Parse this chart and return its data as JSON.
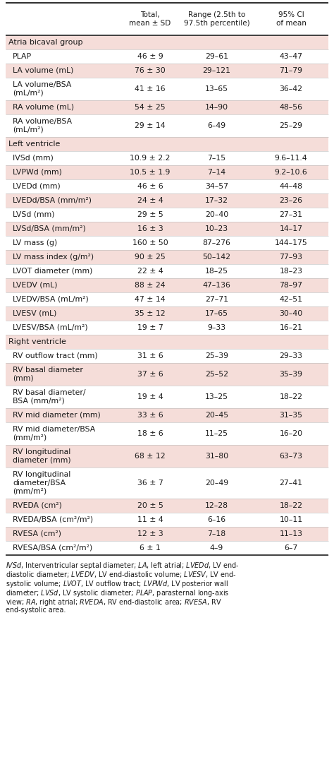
{
  "bg_color": "#fdf0ee",
  "white_color": "#ffffff",
  "shade_color": "#f5ddd9",
  "text_color": "#1a1a1a",
  "rows": [
    {
      "type": "header"
    },
    {
      "type": "section",
      "label": "Atria bicaval group"
    },
    {
      "type": "data",
      "label": "PLAP",
      "c1": "46 ± 9",
      "c2": "29–61",
      "c3": "43–47",
      "shade": false,
      "nlines": 1
    },
    {
      "type": "data",
      "label": "LA volume (mL)",
      "c1": "76 ± 30",
      "c2": "29–121",
      "c3": "71–79",
      "shade": true,
      "nlines": 1
    },
    {
      "type": "data",
      "label": "LA volume/BSA\n(mL/m²)",
      "c1": "41 ± 16",
      "c2": "13–65",
      "c3": "36–42",
      "shade": false,
      "nlines": 2
    },
    {
      "type": "data",
      "label": "RA volume (mL)",
      "c1": "54 ± 25",
      "c2": "14–90",
      "c3": "48–56",
      "shade": true,
      "nlines": 1
    },
    {
      "type": "data",
      "label": "RA volume/BSA\n(mL/m²)",
      "c1": "29 ± 14",
      "c2": "6–49",
      "c3": "25–29",
      "shade": false,
      "nlines": 2
    },
    {
      "type": "section",
      "label": "Left ventricle"
    },
    {
      "type": "data",
      "label": "IVSd (mm)",
      "c1": "10.9 ± 2.2",
      "c2": "7–15",
      "c3": "9.6–11.4",
      "shade": false,
      "nlines": 1
    },
    {
      "type": "data",
      "label": "LVPWd (mm)",
      "c1": "10.5 ± 1.9",
      "c2": "7–14",
      "c3": "9.2–10.6",
      "shade": true,
      "nlines": 1
    },
    {
      "type": "data",
      "label": "LVEDd (mm)",
      "c1": "46 ± 6",
      "c2": "34–57",
      "c3": "44–48",
      "shade": false,
      "nlines": 1
    },
    {
      "type": "data",
      "label": "LVEDd/BSA (mm/m²)",
      "c1": "24 ± 4",
      "c2": "17–32",
      "c3": "23–26",
      "shade": true,
      "nlines": 1
    },
    {
      "type": "data",
      "label": "LVSd (mm)",
      "c1": "29 ± 5",
      "c2": "20–40",
      "c3": "27–31",
      "shade": false,
      "nlines": 1
    },
    {
      "type": "data",
      "label": "LVSd/BSA (mm/m²)",
      "c1": "16 ± 3",
      "c2": "10–23",
      "c3": "14–17",
      "shade": true,
      "nlines": 1
    },
    {
      "type": "data",
      "label": "LV mass (g)",
      "c1": "160 ± 50",
      "c2": "87–276",
      "c3": "144–175",
      "shade": false,
      "nlines": 1
    },
    {
      "type": "data",
      "label": "LV mass index (g/m²)",
      "c1": "90 ± 25",
      "c2": "50–142",
      "c3": "77–93",
      "shade": true,
      "nlines": 1
    },
    {
      "type": "data",
      "label": "LVOT diameter (mm)",
      "c1": "22 ± 4",
      "c2": "18–25",
      "c3": "18–23",
      "shade": false,
      "nlines": 1
    },
    {
      "type": "data",
      "label": "LVEDV (mL)",
      "c1": "88 ± 24",
      "c2": "47–136",
      "c3": "78–97",
      "shade": true,
      "nlines": 1
    },
    {
      "type": "data",
      "label": "LVEDV/BSA (mL/m²)",
      "c1": "47 ± 14",
      "c2": "27–71",
      "c3": "42–51",
      "shade": false,
      "nlines": 1
    },
    {
      "type": "data",
      "label": "LVESV (mL)",
      "c1": "35 ± 12",
      "c2": "17–65",
      "c3": "30–40",
      "shade": true,
      "nlines": 1
    },
    {
      "type": "data",
      "label": "LVESV/BSA (mL/m²)",
      "c1": "19 ± 7",
      "c2": "9–33",
      "c3": "16–21",
      "shade": false,
      "nlines": 1
    },
    {
      "type": "section",
      "label": "Right ventricle"
    },
    {
      "type": "data",
      "label": "RV outflow tract (mm)",
      "c1": "31 ± 6",
      "c2": "25–39",
      "c3": "29–33",
      "shade": false,
      "nlines": 1
    },
    {
      "type": "data",
      "label": "RV basal diameter\n(mm)",
      "c1": "37 ± 6",
      "c2": "25–52",
      "c3": "35–39",
      "shade": true,
      "nlines": 2
    },
    {
      "type": "data",
      "label": "RV basal diameter/\nBSA (mm/m²)",
      "c1": "19 ± 4",
      "c2": "13–25",
      "c3": "18–22",
      "shade": false,
      "nlines": 2
    },
    {
      "type": "data",
      "label": "RV mid diameter (mm)",
      "c1": "33 ± 6",
      "c2": "20–45",
      "c3": "31–35",
      "shade": true,
      "nlines": 1
    },
    {
      "type": "data",
      "label": "RV mid diameter/BSA\n(mm/m²)",
      "c1": "18 ± 6",
      "c2": "11–25",
      "c3": "16–20",
      "shade": false,
      "nlines": 2
    },
    {
      "type": "data",
      "label": "RV longitudinal\ndiameter (mm)",
      "c1": "68 ± 12",
      "c2": "31–80",
      "c3": "63–73",
      "shade": true,
      "nlines": 2
    },
    {
      "type": "data",
      "label": "RV longitudinal\ndiameter/BSA\n(mm/m²)",
      "c1": "36 ± 7",
      "c2": "20–49",
      "c3": "27–41",
      "shade": false,
      "nlines": 3
    },
    {
      "type": "data",
      "label": "RVEDA (cm²)",
      "c1": "20 ± 5",
      "c2": "12–28",
      "c3": "18–22",
      "shade": true,
      "nlines": 1
    },
    {
      "type": "data",
      "label": "RVEDA/BSA (cm²/m²)",
      "c1": "11 ± 4",
      "c2": "6–16",
      "c3": "10–11",
      "shade": false,
      "nlines": 1
    },
    {
      "type": "data",
      "label": "RVESA (cm²)",
      "c1": "12 ± 3",
      "c2": "7–18",
      "c3": "11–13",
      "shade": true,
      "nlines": 1
    },
    {
      "type": "data",
      "label": "RVESA/BSA (cm²/m²)",
      "c1": "6 ± 1",
      "c2": "4–9",
      "c3": "6–7",
      "shade": false,
      "nlines": 1
    }
  ],
  "footnote_lines": [
    "$\\it{IVSd}$, Interventricular septal diameter; $\\it{LA}$, left atrial; $\\it{LVEDd}$, LV end-",
    "diastolic diameter; $\\it{LVEDV}$, LV end-diastolic volume; $\\it{LVESV}$, LV end-",
    "systolic volume; $\\it{LVOT}$, LV outflow tract; $\\it{LVPWd}$, LV posterior wall",
    "diameter; $\\it{LVSd}$, LV systolic diameter; $\\it{PLAP}$, parasternal long-axis",
    "view; $\\it{RA}$, right atrial; $\\it{RVEDA}$, RV end-diastolic area; $\\it{RVESA}$, RV",
    "end-systolic area."
  ]
}
